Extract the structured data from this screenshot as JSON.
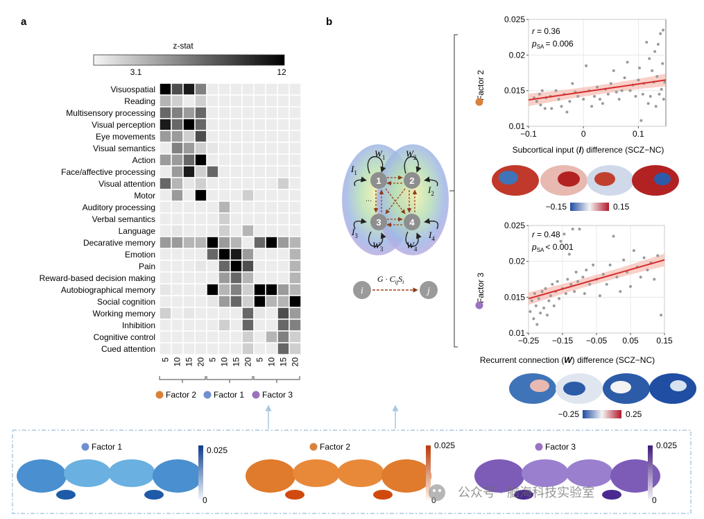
{
  "panel_a": {
    "label": "a",
    "colorbar": {
      "title": "z-stat",
      "min_label": "3.1",
      "max_label": "12"
    },
    "terms": [
      "Visuospatial",
      "Reading",
      "Multisensory processing",
      "Visual perception",
      "Eye movements",
      "Visual semantics",
      "Action",
      "Face/affective processing",
      "Visual attention",
      "Motor",
      "Auditory processing",
      "Verbal semantics",
      "Language",
      "Decarative memory",
      "Emotion",
      "Pain",
      "Reward-based decision making",
      "Autobiographical memory",
      "Social cognition",
      "Working memory",
      "Inhibition",
      "Cognitive control",
      "Cued attention"
    ],
    "columns": [
      "5",
      "10",
      "15",
      "20",
      "5",
      "10",
      "15",
      "20",
      "5",
      "10",
      "15",
      "20"
    ],
    "legend": [
      {
        "label": "Factor 2",
        "color": "#d9823b"
      },
      {
        "label": "Factor 1",
        "color": "#6f8fcf"
      },
      {
        "label": "Factor 3",
        "color": "#9a72c0"
      }
    ]
  },
  "chart_data": [
    {
      "type": "heatmap",
      "title": "z-stat",
      "rows": [
        "Visuospatial",
        "Reading",
        "Multisensory processing",
        "Visual perception",
        "Eye movements",
        "Visual semantics",
        "Action",
        "Face/affective processing",
        "Visual attention",
        "Motor",
        "Auditory processing",
        "Verbal semantics",
        "Language",
        "Decarative memory",
        "Emotion",
        "Pain",
        "Reward-based decision making",
        "Autobiographical memory",
        "Social cognition",
        "Working memory",
        "Inhibition",
        "Cognitive control",
        "Cued attention"
      ],
      "columns": [
        "5",
        "10",
        "15",
        "20",
        "5",
        "10",
        "15",
        "20",
        "5",
        "10",
        "15",
        "20"
      ],
      "column_groups": [
        "Factor 2",
        "Factor 1",
        "Factor 3"
      ],
      "range": [
        3.1,
        12
      ],
      "values": [
        [
          12,
          9,
          11,
          7,
          0,
          0,
          0,
          0,
          0,
          0,
          0,
          0
        ],
        [
          5,
          4,
          0,
          4,
          0,
          0,
          0,
          0,
          0,
          0,
          0,
          0
        ],
        [
          8,
          7,
          6,
          8,
          0,
          0,
          0,
          0,
          0,
          0,
          0,
          0
        ],
        [
          11,
          8,
          12,
          8,
          0,
          0,
          0,
          0,
          0,
          0,
          0,
          0
        ],
        [
          6,
          6,
          4,
          9,
          0,
          0,
          0,
          0,
          0,
          0,
          0,
          0
        ],
        [
          0,
          7,
          6,
          4,
          3,
          0,
          0,
          0,
          0,
          0,
          0,
          0
        ],
        [
          6,
          6,
          8,
          12,
          0,
          0,
          0,
          0,
          0,
          0,
          0,
          0
        ],
        [
          0,
          6,
          11,
          4,
          8,
          0,
          0,
          0,
          0,
          0,
          0,
          0
        ],
        [
          8,
          5,
          3,
          4,
          0,
          0,
          0,
          0,
          0,
          0,
          4,
          0
        ],
        [
          0,
          6,
          0,
          12,
          0,
          0,
          0,
          4,
          0,
          0,
          0,
          0
        ],
        [
          0,
          0,
          0,
          0,
          0,
          5,
          0,
          0,
          0,
          0,
          0,
          0
        ],
        [
          0,
          0,
          0,
          0,
          0,
          4,
          0,
          0,
          0,
          0,
          0,
          0
        ],
        [
          0,
          3,
          0,
          0,
          0,
          4,
          0,
          5,
          0,
          0,
          0,
          0
        ],
        [
          6,
          6,
          5,
          5,
          12,
          6,
          5,
          0,
          8,
          12,
          6,
          5
        ],
        [
          0,
          0,
          0,
          0,
          8,
          12,
          11,
          6,
          0,
          0,
          0,
          5
        ],
        [
          0,
          0,
          0,
          3,
          0,
          8,
          12,
          9,
          0,
          0,
          0,
          5
        ],
        [
          0,
          0,
          0,
          0,
          0,
          6,
          8,
          5,
          0,
          0,
          0,
          5
        ],
        [
          3,
          0,
          0,
          0,
          12,
          5,
          7,
          4,
          12,
          12,
          6,
          5
        ],
        [
          0,
          0,
          0,
          0,
          3,
          6,
          8,
          4,
          12,
          5,
          5,
          12
        ],
        [
          4,
          0,
          3,
          0,
          0,
          0,
          0,
          8,
          3,
          0,
          9,
          6
        ],
        [
          0,
          0,
          0,
          0,
          0,
          4,
          0,
          8,
          0,
          0,
          8,
          7
        ],
        [
          0,
          0,
          0,
          0,
          0,
          0,
          0,
          4,
          0,
          5,
          7,
          4
        ],
        [
          0,
          0,
          0,
          0,
          0,
          0,
          0,
          4,
          0,
          0,
          8,
          4
        ]
      ]
    },
    {
      "type": "scatter",
      "title": "Factor 2",
      "xlabel_pre": "Subcortical input (",
      "xlabel_sym": "I",
      "xlabel_post": ") difference (SCZ−NC)",
      "xlim": [
        -0.1,
        0.15
      ],
      "ylim": [
        0.01,
        0.025
      ],
      "xticks": [
        -0.1,
        0,
        0.1
      ],
      "xtick_labels": [
        "−0.1",
        "0",
        "0.1"
      ],
      "yticks": [
        0.01,
        0.015,
        0.02,
        0.025
      ],
      "ytick_labels": [
        "0.01",
        "0.015",
        "0.02",
        "0.025"
      ],
      "r_text": "= 0.36",
      "p_text": "= 0.006",
      "fit": {
        "x": [
          -0.1,
          0.15
        ],
        "y": [
          0.0137,
          0.0165
        ]
      },
      "points": [
        [
          -0.09,
          0.014
        ],
        [
          -0.085,
          0.0135
        ],
        [
          -0.08,
          0.0145
        ],
        [
          -0.078,
          0.013
        ],
        [
          -0.075,
          0.015
        ],
        [
          -0.07,
          0.0125
        ],
        [
          -0.068,
          0.014
        ],
        [
          -0.06,
          0.0142
        ],
        [
          -0.058,
          0.0125
        ],
        [
          -0.05,
          0.015
        ],
        [
          -0.045,
          0.0138
        ],
        [
          -0.04,
          0.0128
        ],
        [
          -0.035,
          0.0145
        ],
        [
          -0.03,
          0.012
        ],
        [
          -0.025,
          0.0135
        ],
        [
          -0.02,
          0.016
        ],
        [
          -0.015,
          0.0148
        ],
        [
          -0.01,
          0.0142
        ],
        [
          0,
          0.0138
        ],
        [
          0.005,
          0.0185
        ],
        [
          0.01,
          0.015
        ],
        [
          0.015,
          0.0128
        ],
        [
          0.02,
          0.0142
        ],
        [
          0.025,
          0.0155
        ],
        [
          0.03,
          0.0138
        ],
        [
          0.035,
          0.0132
        ],
        [
          0.04,
          0.0152
        ],
        [
          0.045,
          0.0145
        ],
        [
          0.05,
          0.016
        ],
        [
          0.055,
          0.0178
        ],
        [
          0.06,
          0.0148
        ],
        [
          0.065,
          0.0138
        ],
        [
          0.07,
          0.015
        ],
        [
          0.075,
          0.0168
        ],
        [
          0.08,
          0.019
        ],
        [
          0.085,
          0.015
        ],
        [
          0.09,
          0.0158
        ],
        [
          0.095,
          0.0142
        ],
        [
          0.1,
          0.0165
        ],
        [
          0.102,
          0.0182
        ],
        [
          0.105,
          0.0108
        ],
        [
          0.108,
          0.0145
        ],
        [
          0.11,
          0.016
        ],
        [
          0.115,
          0.0218
        ],
        [
          0.118,
          0.0132
        ],
        [
          0.12,
          0.0195
        ],
        [
          0.122,
          0.0142
        ],
        [
          0.125,
          0.0178
        ],
        [
          0.128,
          0.0162
        ],
        [
          0.13,
          0.0205
        ],
        [
          0.132,
          0.0128
        ],
        [
          0.134,
          0.017
        ],
        [
          0.136,
          0.0215
        ],
        [
          0.138,
          0.0145
        ],
        [
          0.14,
          0.023
        ],
        [
          0.142,
          0.0152
        ],
        [
          0.144,
          0.0188
        ],
        [
          0.145,
          0.0235
        ],
        [
          0.146,
          0.0138
        ],
        [
          0.148,
          0.0162
        ]
      ]
    },
    {
      "type": "scatter",
      "title": "Factor 3",
      "xlabel_pre": "Recurrent connection (",
      "xlabel_sym": "W",
      "xlabel_post": ") difference (SCZ−NC)",
      "xlim": [
        -0.25,
        0.15
      ],
      "ylim": [
        0.01,
        0.025
      ],
      "xticks": [
        -0.25,
        -0.15,
        -0.05,
        0.05,
        0.15
      ],
      "xtick_labels": [
        "−0.25",
        "−0.15",
        "−0.05",
        "0.05",
        "0.15"
      ],
      "yticks": [
        0.01,
        0.015,
        0.02,
        0.025
      ],
      "ytick_labels": [
        "0.01",
        "0.015",
        "0.02",
        "0.025"
      ],
      "r_text": "= 0.48",
      "p_text": "< 0.001",
      "fit": {
        "x": [
          -0.25,
          0.15
        ],
        "y": [
          0.0148,
          0.0202
        ]
      },
      "points": [
        [
          -0.245,
          0.013
        ],
        [
          -0.24,
          0.0145
        ],
        [
          -0.235,
          0.012
        ],
        [
          -0.232,
          0.0155
        ],
        [
          -0.228,
          0.0138
        ],
        [
          -0.225,
          0.0112
        ],
        [
          -0.22,
          0.0148
        ],
        [
          -0.215,
          0.0128
        ],
        [
          -0.21,
          0.0158
        ],
        [
          -0.205,
          0.0135
        ],
        [
          -0.2,
          0.0162
        ],
        [
          -0.195,
          0.0125
        ],
        [
          -0.19,
          0.0145
        ],
        [
          -0.185,
          0.0152
        ],
        [
          -0.18,
          0.0168
        ],
        [
          -0.175,
          0.0138
        ],
        [
          -0.17,
          0.0158
        ],
        [
          -0.165,
          0.0172
        ],
        [
          -0.16,
          0.0148
        ],
        [
          -0.155,
          0.0228
        ],
        [
          -0.15,
          0.0162
        ],
        [
          -0.145,
          0.0238
        ],
        [
          -0.14,
          0.0155
        ],
        [
          -0.135,
          0.0175
        ],
        [
          -0.13,
          0.021
        ],
        [
          -0.125,
          0.0168
        ],
        [
          -0.12,
          0.0245
        ],
        [
          -0.115,
          0.0158
        ],
        [
          -0.11,
          0.0185
        ],
        [
          -0.105,
          0.0172
        ],
        [
          -0.1,
          0.0245
        ],
        [
          -0.09,
          0.0178
        ],
        [
          -0.085,
          0.0155
        ],
        [
          -0.08,
          0.0188
        ],
        [
          -0.07,
          0.0168
        ],
        [
          -0.06,
          0.0195
        ],
        [
          -0.05,
          0.0175
        ],
        [
          -0.04,
          0.0152
        ],
        [
          -0.03,
          0.0182
        ],
        [
          -0.02,
          0.0168
        ],
        [
          -0.01,
          0.0195
        ],
        [
          0,
          0.0235
        ],
        [
          0.01,
          0.0178
        ],
        [
          0.02,
          0.0158
        ],
        [
          0.03,
          0.0202
        ],
        [
          0.04,
          0.0185
        ],
        [
          0.05,
          0.0165
        ],
        [
          0.06,
          0.0215
        ],
        [
          0.07,
          0.0192
        ],
        [
          0.08,
          0.0178
        ],
        [
          0.09,
          0.0205
        ],
        [
          0.1,
          0.0188
        ],
        [
          0.11,
          0.0198
        ],
        [
          0.12,
          0.0175
        ],
        [
          0.13,
          0.0208
        ],
        [
          0.14,
          0.0125
        ]
      ]
    }
  ],
  "panel_b": {
    "label": "b",
    "diagram": {
      "nodes": [
        "1",
        "2",
        "3",
        "4"
      ],
      "w_labels": [
        "W",
        "W",
        "W",
        "W"
      ],
      "w_subs": [
        "1",
        "2",
        "3",
        "4"
      ],
      "i_labels": [
        "I",
        "I",
        "I",
        "I"
      ],
      "i_subs": [
        "1",
        "2",
        "3",
        "4"
      ],
      "edge_from": "i",
      "edge_to": "j",
      "edge_label": "G · C",
      "edge_sub1": "ij",
      "edge_mid": "S",
      "edge_sub2": "i",
      "ellipsis": "..."
    },
    "plot1": {
      "factor_label": "Factor 2",
      "factor_color": "#d9823b",
      "r_label": "r",
      "p_label": "p",
      "p_sub": "SA",
      "colorbar": {
        "min": "−0.15",
        "max": "0.15"
      }
    },
    "plot2": {
      "factor_label": "Factor 3",
      "factor_color": "#9a72c0",
      "r_label": "r",
      "p_label": "p",
      "p_sub": "SA",
      "colorbar": {
        "min": "−0.25",
        "max": "0.25"
      }
    }
  },
  "bottom_panel": {
    "factors": [
      {
        "label": "Factor 1",
        "color": "#6f8fcf",
        "cbar_max": "0.025",
        "cbar_min": "0"
      },
      {
        "label": "Factor 2",
        "color": "#d9823b",
        "cbar_max": "0.025",
        "cbar_min": "0"
      },
      {
        "label": "Factor 3",
        "color": "#9a72c0",
        "cbar_max": "0.025",
        "cbar_min": "0"
      }
    ]
  },
  "watermark": {
    "text": "公众号 · 脑海科技实验室"
  }
}
